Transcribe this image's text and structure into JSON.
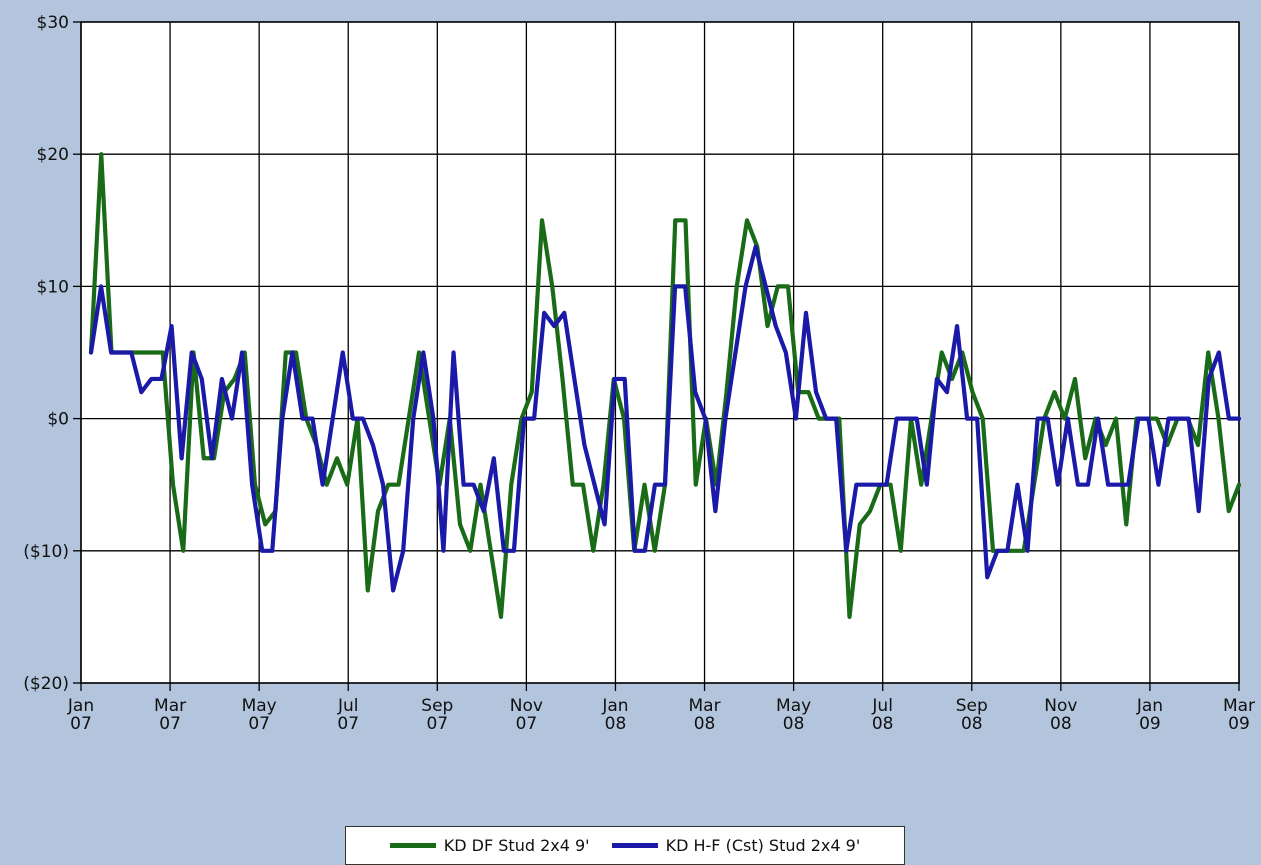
{
  "chart_data": {
    "type": "line",
    "ylim": [
      -20,
      30
    ],
    "y_ticks": [
      {
        "value": 30,
        "label": "$30"
      },
      {
        "value": 20,
        "label": "$20"
      },
      {
        "value": 10,
        "label": "$10"
      },
      {
        "value": 0,
        "label": "$0"
      },
      {
        "value": -10,
        "label": "($10)"
      },
      {
        "value": -20,
        "label": "($20)"
      }
    ],
    "x_ticks": [
      {
        "month": 0,
        "line1": "Jan",
        "line2": "07"
      },
      {
        "month": 2,
        "line1": "Mar",
        "line2": "07"
      },
      {
        "month": 4,
        "line1": "May",
        "line2": "07"
      },
      {
        "month": 6,
        "line1": "Jul",
        "line2": "07"
      },
      {
        "month": 8,
        "line1": "Sep",
        "line2": "07"
      },
      {
        "month": 10,
        "line1": "Nov",
        "line2": "07"
      },
      {
        "month": 12,
        "line1": "Jan",
        "line2": "08"
      },
      {
        "month": 14,
        "line1": "Mar",
        "line2": "08"
      },
      {
        "month": 16,
        "line1": "May",
        "line2": "08"
      },
      {
        "month": 18,
        "line1": "Jul",
        "line2": "08"
      },
      {
        "month": 20,
        "line1": "Sep",
        "line2": "08"
      },
      {
        "month": 22,
        "line1": "Nov",
        "line2": "08"
      },
      {
        "month": 24,
        "line1": "Jan",
        "line2": "09"
      },
      {
        "month": 26,
        "line1": "Mar",
        "line2": "09"
      }
    ],
    "grid": true,
    "legend_position": "bottom",
    "series": [
      {
        "name": "KD DF Stud 2x4 9'",
        "color": "#1a6b17",
        "values": [
          5,
          20,
          5,
          5,
          5,
          5,
          5,
          5,
          -5,
          -10,
          5,
          -3,
          -3,
          2,
          3,
          5,
          -5,
          -8,
          -7,
          5,
          5,
          0,
          -2,
          -5,
          -3,
          -5,
          0,
          -13,
          -7,
          -5,
          -5,
          0,
          5,
          0,
          -5,
          0,
          -8,
          -10,
          -5,
          -10,
          -15,
          -5,
          0,
          2,
          15,
          10,
          3,
          -5,
          -5,
          -10,
          -5,
          3,
          0,
          -10,
          -5,
          -10,
          -5,
          15,
          15,
          -5,
          0,
          -5,
          2,
          10,
          15,
          13,
          7,
          10,
          10,
          2,
          2,
          0,
          0,
          0,
          -15,
          -8,
          -7,
          -5,
          -5,
          -10,
          0,
          -5,
          0,
          5,
          3,
          5,
          2,
          0,
          -10,
          -10,
          -10,
          -10,
          -5,
          0,
          2,
          0,
          3,
          -3,
          0,
          -2,
          0,
          -8,
          0,
          0,
          0,
          -2,
          0,
          0,
          -2,
          5,
          0,
          -7,
          -5
        ]
      },
      {
        "name": "KD H-F (Cst) Stud 2x4 9'",
        "color": "#1b1aa8",
        "values": [
          5,
          10,
          5,
          5,
          5,
          2,
          3,
          3,
          7,
          -3,
          5,
          3,
          -3,
          3,
          0,
          5,
          -5,
          -10,
          -10,
          0,
          5,
          0,
          0,
          -5,
          0,
          5,
          0,
          0,
          -2,
          -5,
          -13,
          -10,
          0,
          5,
          0,
          -10,
          5,
          -5,
          -5,
          -7,
          -3,
          -10,
          -10,
          0,
          0,
          8,
          7,
          8,
          3,
          -2,
          -5,
          -8,
          3,
          3,
          -10,
          -10,
          -5,
          -5,
          10,
          10,
          2,
          0,
          -7,
          0,
          5,
          10,
          13,
          10,
          7,
          5,
          0,
          8,
          2,
          0,
          0,
          -10,
          -5,
          -5,
          -5,
          -5,
          0,
          0,
          0,
          -5,
          3,
          2,
          7,
          0,
          0,
          -12,
          -10,
          -10,
          -5,
          -10,
          0,
          0,
          -5,
          0,
          -5,
          -5,
          0,
          -5,
          -5,
          -5,
          0,
          0,
          -5,
          0,
          0,
          0,
          -7,
          3,
          5,
          0,
          0
        ]
      }
    ]
  }
}
